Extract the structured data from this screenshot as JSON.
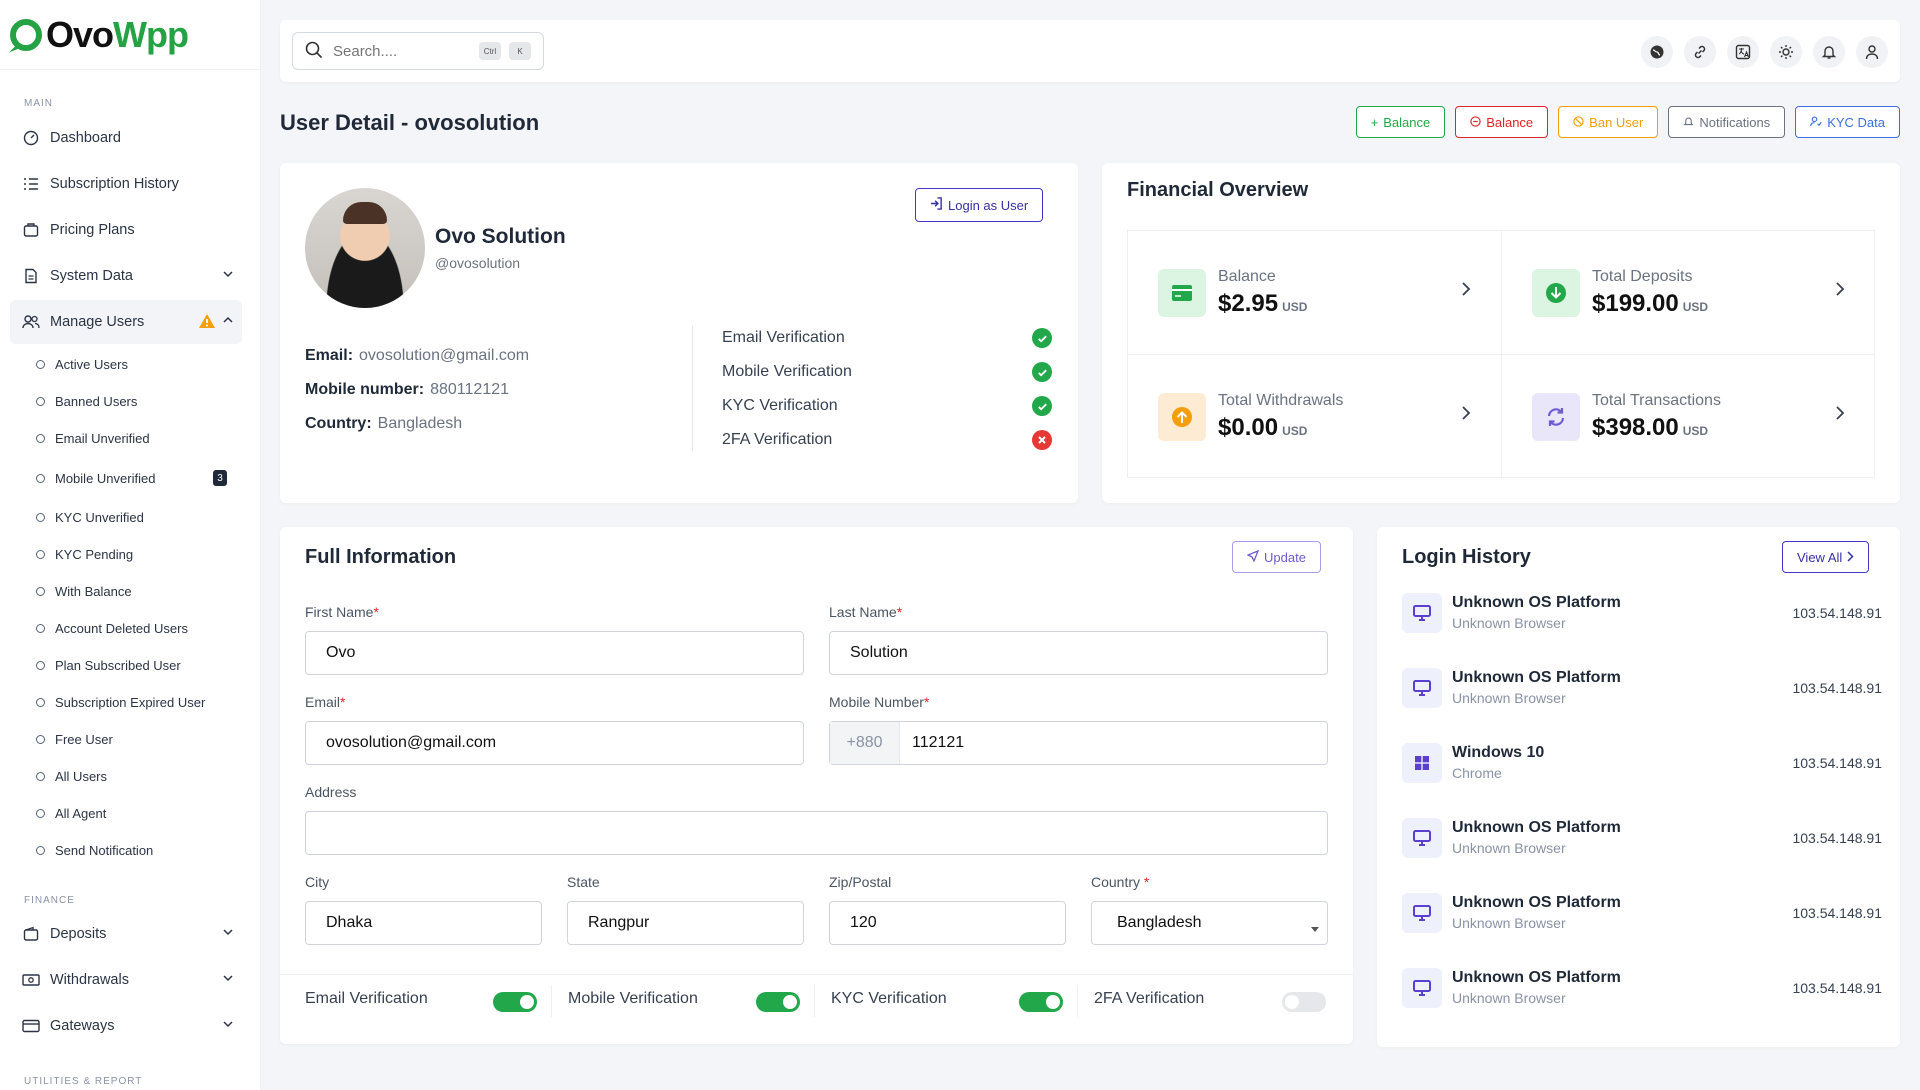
{
  "brand": {
    "part1": "Ovo",
    "part2": "Wpp"
  },
  "sidebar": {
    "sections": {
      "main": "MAIN",
      "finance": "FINANCE",
      "utilities": "UTILITIES & REPORT"
    },
    "items": [
      {
        "label": "Dashboard"
      },
      {
        "label": "Subscription History"
      },
      {
        "label": "Pricing Plans"
      },
      {
        "label": "System Data"
      },
      {
        "label": "Manage Users"
      }
    ],
    "sub_items": [
      {
        "label": "Active Users"
      },
      {
        "label": "Banned Users"
      },
      {
        "label": "Email Unverified"
      },
      {
        "label": "Mobile Unverified",
        "badge": "3"
      },
      {
        "label": "KYC Unverified"
      },
      {
        "label": "KYC Pending"
      },
      {
        "label": "With Balance"
      },
      {
        "label": "Account Deleted Users"
      },
      {
        "label": "Plan Subscribed User"
      },
      {
        "label": "Subscription Expired User"
      },
      {
        "label": "Free User"
      },
      {
        "label": "All Users"
      },
      {
        "label": "All Agent"
      },
      {
        "label": "Send Notification"
      }
    ],
    "finance_items": [
      {
        "label": "Deposits"
      },
      {
        "label": "Withdrawals"
      },
      {
        "label": "Gateways"
      }
    ]
  },
  "search": {
    "placeholder": "Search....",
    "kbd1": "Ctrl",
    "kbd2": "K"
  },
  "page": {
    "title": "User Detail - ovosolution"
  },
  "actions": {
    "add_balance": "Balance",
    "sub_balance": "Balance",
    "ban_user": "Ban User",
    "notifications": "Notifications",
    "kyc_data": "KYC Data"
  },
  "profile": {
    "name": "Ovo Solution",
    "username": "@ovosolution",
    "login_as_user": "Login as User",
    "email_label": "Email:",
    "email": "ovosolution@gmail.com",
    "mobile_label": "Mobile number:",
    "mobile": "880112121",
    "country_label": "Country:",
    "country": "Bangladesh",
    "verifications": [
      {
        "label": "Email Verification",
        "ok": true
      },
      {
        "label": "Mobile Verification",
        "ok": true
      },
      {
        "label": "KYC Verification",
        "ok": true
      },
      {
        "label": "2FA Verification",
        "ok": false
      }
    ]
  },
  "financial": {
    "title": "Financial Overview",
    "currency": "USD",
    "items": [
      {
        "label": "Balance",
        "value": "$2.95",
        "color": "#22a84a"
      },
      {
        "label": "Total Deposits",
        "value": "$199.00",
        "color": "#22a84a"
      },
      {
        "label": "Total Withdrawals",
        "value": "$0.00",
        "color": "#f59e0b"
      },
      {
        "label": "Total Transactions",
        "value": "$398.00",
        "color": "#6d5bd0"
      }
    ]
  },
  "full_info": {
    "title": "Full Information",
    "update": "Update",
    "first_name_label": "First Name",
    "first_name": "Ovo",
    "last_name_label": "Last Name",
    "last_name": "Solution",
    "email_label": "Email",
    "email": "ovosolution@gmail.com",
    "mobile_label": "Mobile Number",
    "dial_code": "+880",
    "mobile": "112121",
    "address_label": "Address",
    "address": "",
    "city_label": "City",
    "city": "Dhaka",
    "state_label": "State",
    "state": "Rangpur",
    "zip_label": "Zip/Postal",
    "zip": "120",
    "country_label": "Country",
    "country": "Bangladesh",
    "toggles": [
      {
        "label": "Email Verification",
        "on": true
      },
      {
        "label": "Mobile Verification",
        "on": true
      },
      {
        "label": "KYC Verification",
        "on": true
      },
      {
        "label": "2FA Verification",
        "on": false
      }
    ]
  },
  "login_history": {
    "title": "Login History",
    "view_all": "View All",
    "rows": [
      {
        "os": "Unknown OS Platform",
        "browser": "Unknown Browser",
        "ip": "103.54.148.91",
        "icon": "monitor-icon"
      },
      {
        "os": "Unknown OS Platform",
        "browser": "Unknown Browser",
        "ip": "103.54.148.91",
        "icon": "monitor-icon"
      },
      {
        "os": "Windows 10",
        "browser": "Chrome",
        "ip": "103.54.148.91",
        "icon": "windows-icon"
      },
      {
        "os": "Unknown OS Platform",
        "browser": "Unknown Browser",
        "ip": "103.54.148.91",
        "icon": "monitor-icon"
      },
      {
        "os": "Unknown OS Platform",
        "browser": "Unknown Browser",
        "ip": "103.54.148.91",
        "icon": "monitor-icon"
      },
      {
        "os": "Unknown OS Platform",
        "browser": "Unknown Browser",
        "ip": "103.54.148.91",
        "icon": "monitor-icon"
      }
    ]
  }
}
